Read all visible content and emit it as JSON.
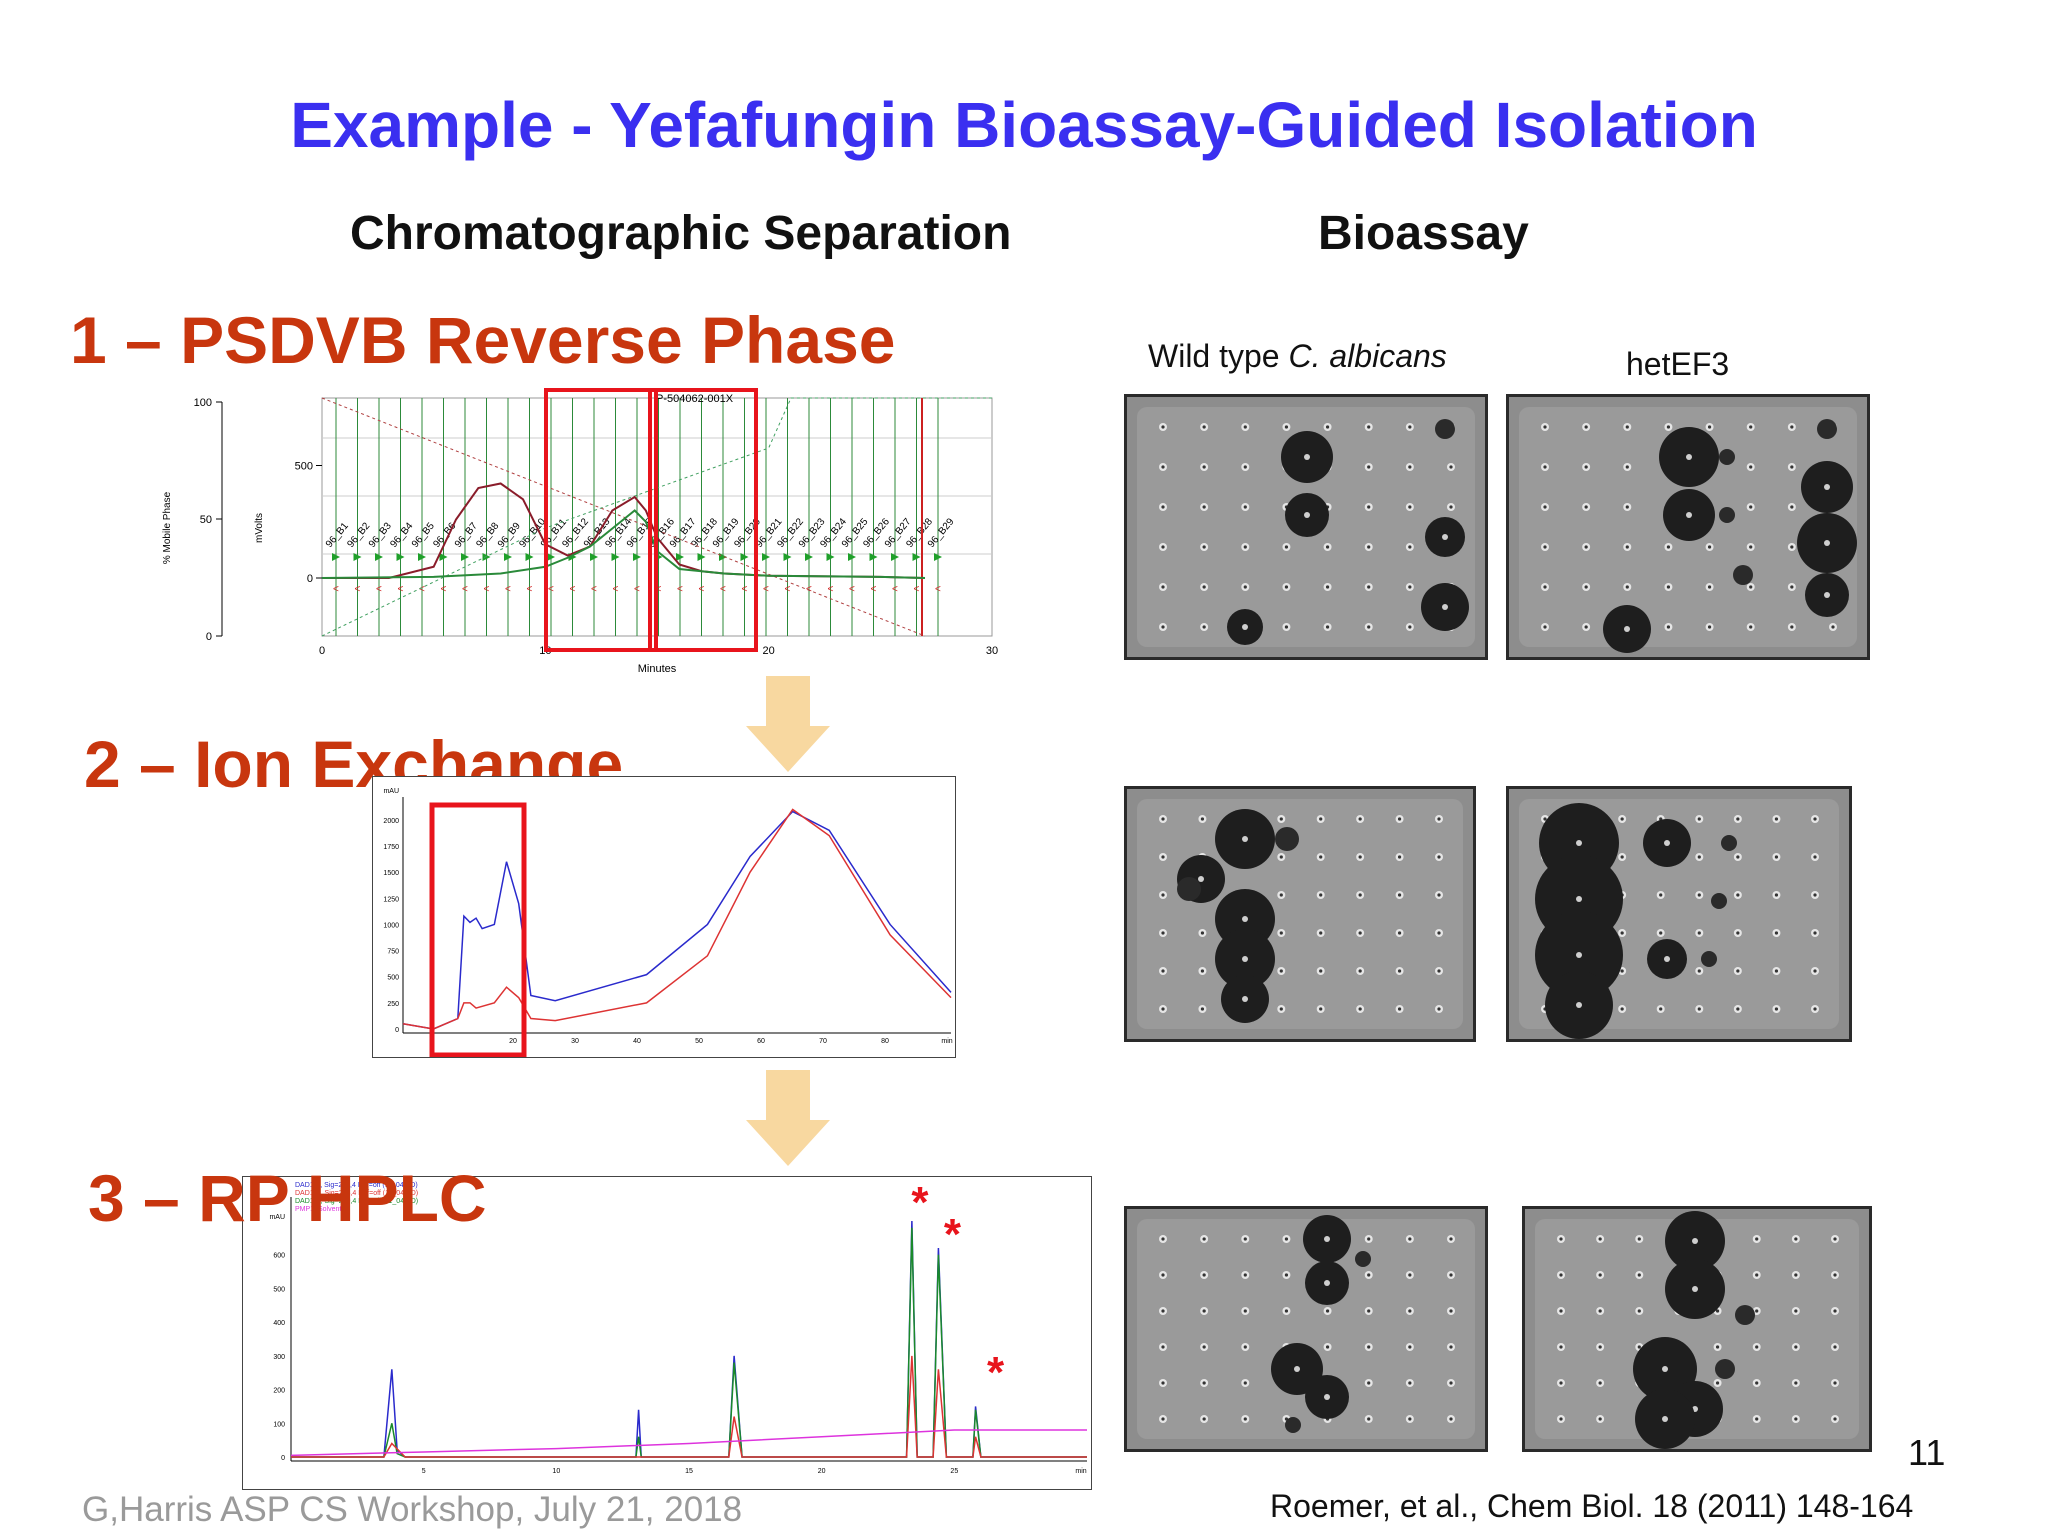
{
  "slide": {
    "title": "Example - Yefafungin Bioassay-Guided Isolation",
    "col_left": "Chromatographic Separation",
    "col_right": "Bioassay",
    "steps": [
      {
        "label": "1 – PSDVB Reverse Phase"
      },
      {
        "label": "2 – Ion Exchange"
      },
      {
        "label": "3 – RP HPLC"
      }
    ],
    "plate_labels": {
      "wild_prefix": "Wild type ",
      "wild_species": "C. albicans",
      "mutant": "hetEF3"
    },
    "footer": "G,Harris ASP CS Workshop, July 21, 2018",
    "citation": "Roemer, et al., Chem Biol. 18 (2011) 148-164",
    "page_number": "11",
    "colors": {
      "title": "#3a2ff0",
      "step": "#c8360e",
      "highlight": "#e8141c",
      "arrow": "#f8d8a0"
    }
  },
  "chart_data": [
    {
      "type": "line",
      "panel": "PSDVB Reverse Phase",
      "xlabel": "Minutes",
      "ylabel_left": "% Mobile Phase",
      "ylabel_right": "mVolts",
      "annotation": "P-504062-001X",
      "xticks": [
        "0",
        "10",
        "20",
        "30"
      ],
      "yticks_left": [
        "0",
        "50",
        "100"
      ],
      "yticks_right": [
        "0",
        "500"
      ],
      "fraction_labels": [
        "96_B1",
        "96_B2",
        "96_B3",
        "96_B4",
        "96_B5",
        "96_B6",
        "96_B7",
        "96_B8",
        "96_B9",
        "96_B10",
        "96_B11",
        "96_B12",
        "96_B13",
        "96_B14",
        "96_B15",
        "96_B16",
        "96_B17",
        "96_B18",
        "96_B19",
        "96_B20",
        "96_B21",
        "96_B22",
        "96_B23",
        "96_B24",
        "96_B25",
        "96_B26",
        "96_B27",
        "96_B28",
        "96_B29"
      ],
      "xlim": [
        0,
        30
      ],
      "series": [
        {
          "color": "#8a1c2a",
          "x": [
            0,
            3,
            5,
            6,
            7,
            8,
            9,
            10,
            11,
            12,
            13,
            14,
            14.5,
            15,
            16,
            17,
            18,
            20,
            25,
            27
          ],
          "y": [
            0,
            0,
            50,
            260,
            400,
            420,
            350,
            150,
            100,
            140,
            300,
            360,
            300,
            180,
            60,
            30,
            20,
            10,
            5,
            0
          ]
        },
        {
          "color": "#2a8a3a",
          "x": [
            0,
            5,
            8,
            10,
            11,
            12,
            13,
            14,
            14.5,
            15,
            16,
            18,
            20,
            25,
            27
          ],
          "y": [
            0,
            5,
            20,
            50,
            90,
            140,
            220,
            300,
            250,
            120,
            40,
            20,
            10,
            5,
            0
          ]
        }
      ]
    },
    {
      "type": "line",
      "panel": "Ion Exchange",
      "ylabel": "mAU",
      "yticks": [
        "0",
        "250",
        "500",
        "750",
        "1000",
        "1250",
        "1500",
        "1750",
        "2000"
      ],
      "xticks": [
        "20",
        "30",
        "40",
        "50",
        "60",
        "70",
        "80",
        "min"
      ],
      "series": [
        {
          "color": "#2a2acc",
          "x": [
            0,
            5,
            9,
            10,
            11,
            12,
            13,
            15,
            17,
            19,
            21,
            25,
            40,
            50,
            57,
            64,
            70,
            80,
            90
          ],
          "y": [
            50,
            0,
            100,
            1080,
            1020,
            1060,
            960,
            1000,
            1600,
            1200,
            320,
            270,
            520,
            1000,
            1650,
            2080,
            1900,
            1000,
            350
          ]
        },
        {
          "color": "#dd3333",
          "x": [
            0,
            5,
            9,
            10,
            11,
            12,
            15,
            17,
            19,
            21,
            25,
            40,
            50,
            57,
            64,
            70,
            80,
            90
          ],
          "y": [
            50,
            0,
            100,
            250,
            250,
            200,
            250,
            400,
            300,
            100,
            80,
            250,
            700,
            1500,
            2100,
            1850,
            900,
            300
          ]
        }
      ]
    },
    {
      "type": "line",
      "panel": "RP HPLC",
      "ylabel": "mAU",
      "yticks": [
        "0",
        "100",
        "200",
        "300",
        "400",
        "500",
        "600"
      ],
      "xticks": [
        "5",
        "10",
        "15",
        "20",
        "25",
        "min"
      ],
      "legend_entries": [
        "DAD1 B, Sig=220,4 Ref=off (11_04A.D)",
        "DAD1 C, Sig=254,4 Ref=off (11_04A.D)",
        "DAD1 D, Sig=280,4 Ref=off (11_04A.D)",
        "PMP1, Solvent B"
      ],
      "starred_peaks_min": [
        23.4,
        24.4,
        25.8
      ],
      "xlim": [
        0,
        30
      ],
      "series": [
        {
          "color": "#2a2acc",
          "x": [
            0,
            3.5,
            3.8,
            4.0,
            4.3,
            13,
            13.1,
            13.2,
            16.5,
            16.7,
            17,
            23.2,
            23.4,
            23.6,
            24.2,
            24.4,
            24.7,
            25.7,
            25.8,
            26,
            30
          ],
          "y": [
            0,
            0,
            260,
            20,
            0,
            0,
            140,
            0,
            0,
            300,
            0,
            0,
            700,
            0,
            0,
            620,
            0,
            0,
            150,
            0,
            0
          ]
        },
        {
          "color": "#1a8a2a",
          "x": [
            0,
            3.5,
            3.8,
            4.0,
            4.3,
            13,
            13.1,
            13.2,
            16.5,
            16.7,
            17,
            23.2,
            23.4,
            23.6,
            24.2,
            24.4,
            24.7,
            25.7,
            25.8,
            26,
            30
          ],
          "y": [
            0,
            0,
            100,
            10,
            0,
            0,
            60,
            0,
            0,
            280,
            0,
            0,
            680,
            0,
            0,
            600,
            0,
            0,
            140,
            0,
            0
          ]
        },
        {
          "color": "#dd3333",
          "x": [
            0,
            3.5,
            3.8,
            4.3,
            16.5,
            16.7,
            17,
            23.2,
            23.4,
            23.6,
            24.2,
            24.4,
            24.7,
            25.7,
            25.8,
            26,
            30
          ],
          "y": [
            0,
            0,
            40,
            0,
            0,
            120,
            0,
            0,
            300,
            0,
            0,
            260,
            0,
            0,
            60,
            0,
            0
          ]
        },
        {
          "color": "#dd33dd",
          "x": [
            0,
            5,
            10,
            15,
            20,
            25,
            30
          ],
          "y": [
            5,
            15,
            25,
            40,
            60,
            80,
            80
          ]
        }
      ]
    }
  ]
}
